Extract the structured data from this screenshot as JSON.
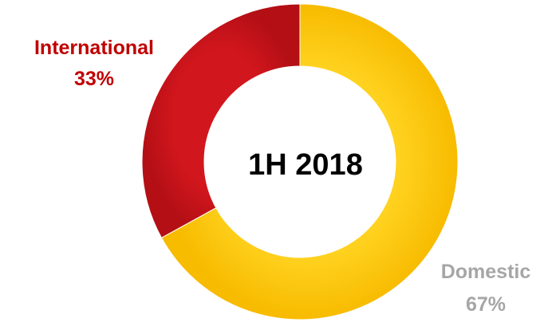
{
  "chart_data": {
    "type": "pie",
    "donut": true,
    "center_label": "1H 2018",
    "slices": [
      {
        "label": "International",
        "percent_label": "33%",
        "value": 33,
        "color": "#c0141b",
        "label_color": "#c00000"
      },
      {
        "label": "Domestic",
        "percent_label": "67%",
        "value": 67,
        "color": "#ffc000",
        "label_color": "#a6a6a6"
      }
    ]
  }
}
